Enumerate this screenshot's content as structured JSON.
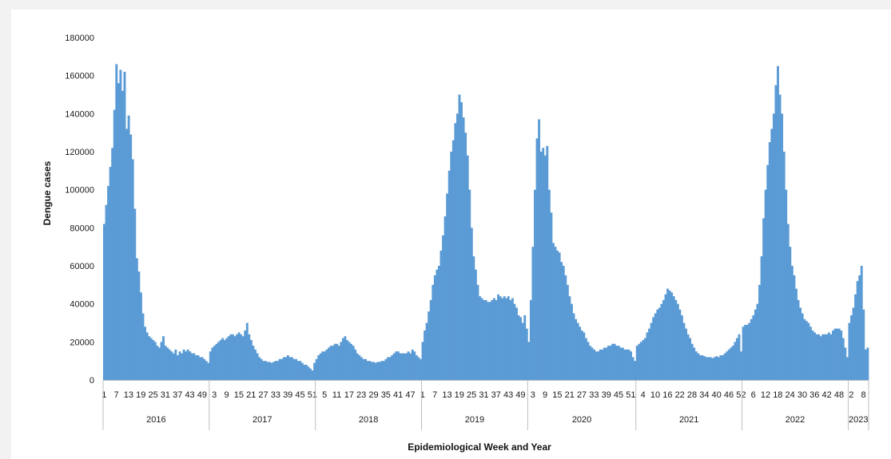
{
  "chart_data": {
    "type": "bar",
    "title": "",
    "xlabel": "Epidemiological Week and Year",
    "ylabel": "Dengue cases",
    "ylim": [
      0,
      180000
    ],
    "yticks": [
      0,
      20000,
      40000,
      60000,
      80000,
      100000,
      120000,
      140000,
      160000,
      180000
    ],
    "grid": false,
    "legend": "none",
    "bar_color": "#5b9bd5",
    "years": [
      {
        "year": "2016",
        "weeks": 52,
        "week_labels": [
          "1",
          "7",
          "13",
          "19",
          "25",
          "31",
          "37",
          "43",
          "49"
        ]
      },
      {
        "year": "2017",
        "weeks": 52,
        "week_labels": [
          "3",
          "9",
          "15",
          "21",
          "27",
          "33",
          "39",
          "45",
          "51"
        ]
      },
      {
        "year": "2018",
        "weeks": 52,
        "week_labels": [
          "5",
          "11",
          "17",
          "23",
          "29",
          "35",
          "41",
          "47"
        ]
      },
      {
        "year": "2019",
        "weeks": 52,
        "week_labels": [
          "1",
          "7",
          "13",
          "19",
          "25",
          "31",
          "37",
          "43",
          "49"
        ]
      },
      {
        "year": "2020",
        "weeks": 53,
        "week_labels": [
          "3",
          "9",
          "15",
          "21",
          "27",
          "33",
          "39",
          "45",
          "51"
        ]
      },
      {
        "year": "2021",
        "weeks": 52,
        "week_labels": [
          "4",
          "10",
          "16",
          "22",
          "28",
          "34",
          "40",
          "46",
          "52"
        ]
      },
      {
        "year": "2022",
        "weeks": 52,
        "week_labels": [
          "6",
          "12",
          "18",
          "24",
          "30",
          "36",
          "42",
          "48"
        ]
      },
      {
        "year": "2023",
        "weeks": 10,
        "week_labels": [
          "2",
          "8"
        ]
      }
    ],
    "series": [
      {
        "values": [
          82000,
          92000,
          102000,
          112000,
          122000,
          142000,
          166000,
          156000,
          163000,
          152000,
          162000,
          132000,
          139000,
          129000,
          116000,
          90000,
          64000,
          57000,
          46000,
          35000,
          28000,
          25000,
          23000,
          22000,
          21000,
          20000,
          18000,
          17000,
          20000,
          23000,
          18000,
          17000,
          16000,
          15000,
          14000,
          16000,
          13000,
          15000,
          14000,
          16000,
          15000,
          16000,
          15000,
          14000,
          14000,
          13000,
          13000,
          12000,
          12000,
          11000,
          10000,
          9000,
          15000,
          17000,
          18000,
          19000,
          20000,
          21000,
          22000,
          21000,
          22000,
          23000,
          24000,
          24000,
          23000,
          24000,
          25000,
          24000,
          23000,
          26000,
          30000,
          24000,
          21000,
          18000,
          16000,
          14000,
          12000,
          11000,
          10000,
          10000,
          9500,
          9500,
          9000,
          9500,
          10000,
          10000,
          11000,
          11000,
          12000,
          12000,
          13000,
          12000,
          12000,
          11000,
          11000,
          10000,
          10000,
          9000,
          8000,
          8000,
          7000,
          6000,
          5000,
          9000,
          11000,
          13000,
          14000,
          15000,
          15000,
          16000,
          17000,
          18000,
          18000,
          19000,
          19000,
          18000,
          20000,
          22000,
          23000,
          21000,
          20000,
          19000,
          18000,
          16000,
          14000,
          13000,
          12000,
          11000,
          11000,
          10000,
          10000,
          9500,
          9500,
          9000,
          9500,
          9500,
          10000,
          10000,
          11000,
          12000,
          12000,
          13000,
          14000,
          15000,
          15000,
          14000,
          14000,
          14000,
          14000,
          15000,
          14000,
          16000,
          15000,
          13000,
          12000,
          11000,
          20000,
          26000,
          30000,
          36000,
          42000,
          50000,
          55000,
          58000,
          60000,
          68000,
          76000,
          86000,
          98000,
          110000,
          120000,
          126000,
          135000,
          140000,
          150000,
          146000,
          138000,
          130000,
          118000,
          100000,
          80000,
          65000,
          58000,
          50000,
          44000,
          43000,
          42000,
          42000,
          41000,
          41000,
          42000,
          43000,
          42000,
          45000,
          44000,
          43000,
          44000,
          43000,
          44000,
          42000,
          43000,
          40000,
          38000,
          34000,
          33000,
          30000,
          34000,
          27000,
          20000,
          42000,
          70000,
          100000,
          127000,
          137000,
          120000,
          122000,
          118000,
          123000,
          100000,
          88000,
          72000,
          70000,
          68000,
          67000,
          62000,
          60000,
          55000,
          50000,
          44000,
          40000,
          35000,
          32000,
          30000,
          28000,
          26000,
          25000,
          22000,
          20000,
          18000,
          17000,
          16000,
          15000,
          15000,
          16000,
          16000,
          17000,
          17000,
          18000,
          18000,
          19000,
          19000,
          18000,
          18000,
          17000,
          17000,
          16000,
          16000,
          16000,
          15000,
          12000,
          10000,
          18000,
          19000,
          20000,
          21000,
          22000,
          25000,
          27000,
          30000,
          33000,
          35000,
          37000,
          38000,
          40000,
          42000,
          45000,
          48000,
          47000,
          46000,
          44000,
          42000,
          40000,
          37000,
          34000,
          30000,
          27000,
          24000,
          22000,
          19000,
          17000,
          15000,
          14000,
          13000,
          13000,
          12500,
          12000,
          12000,
          12000,
          11500,
          12000,
          12500,
          12000,
          13000,
          13000,
          14000,
          15000,
          16000,
          17000,
          18000,
          20000,
          22000,
          24000,
          15000,
          28000,
          29000,
          29000,
          30000,
          32000,
          34000,
          37000,
          40000,
          50000,
          65000,
          85000,
          100000,
          113000,
          125000,
          132000,
          140000,
          155000,
          165000,
          150000,
          140000,
          120000,
          100000,
          82000,
          70000,
          60000,
          55000,
          48000,
          42000,
          38000,
          35000,
          32000,
          31000,
          30000,
          28000,
          26000,
          25000,
          24000,
          24000,
          23000,
          24000,
          24000,
          24000,
          25000,
          24000,
          26000,
          27000,
          27000,
          27000,
          26000,
          22000,
          17000,
          12000,
          30000,
          34000,
          38000,
          45000,
          52000,
          55000,
          60000,
          37000,
          16000,
          17000
        ]
      }
    ]
  }
}
